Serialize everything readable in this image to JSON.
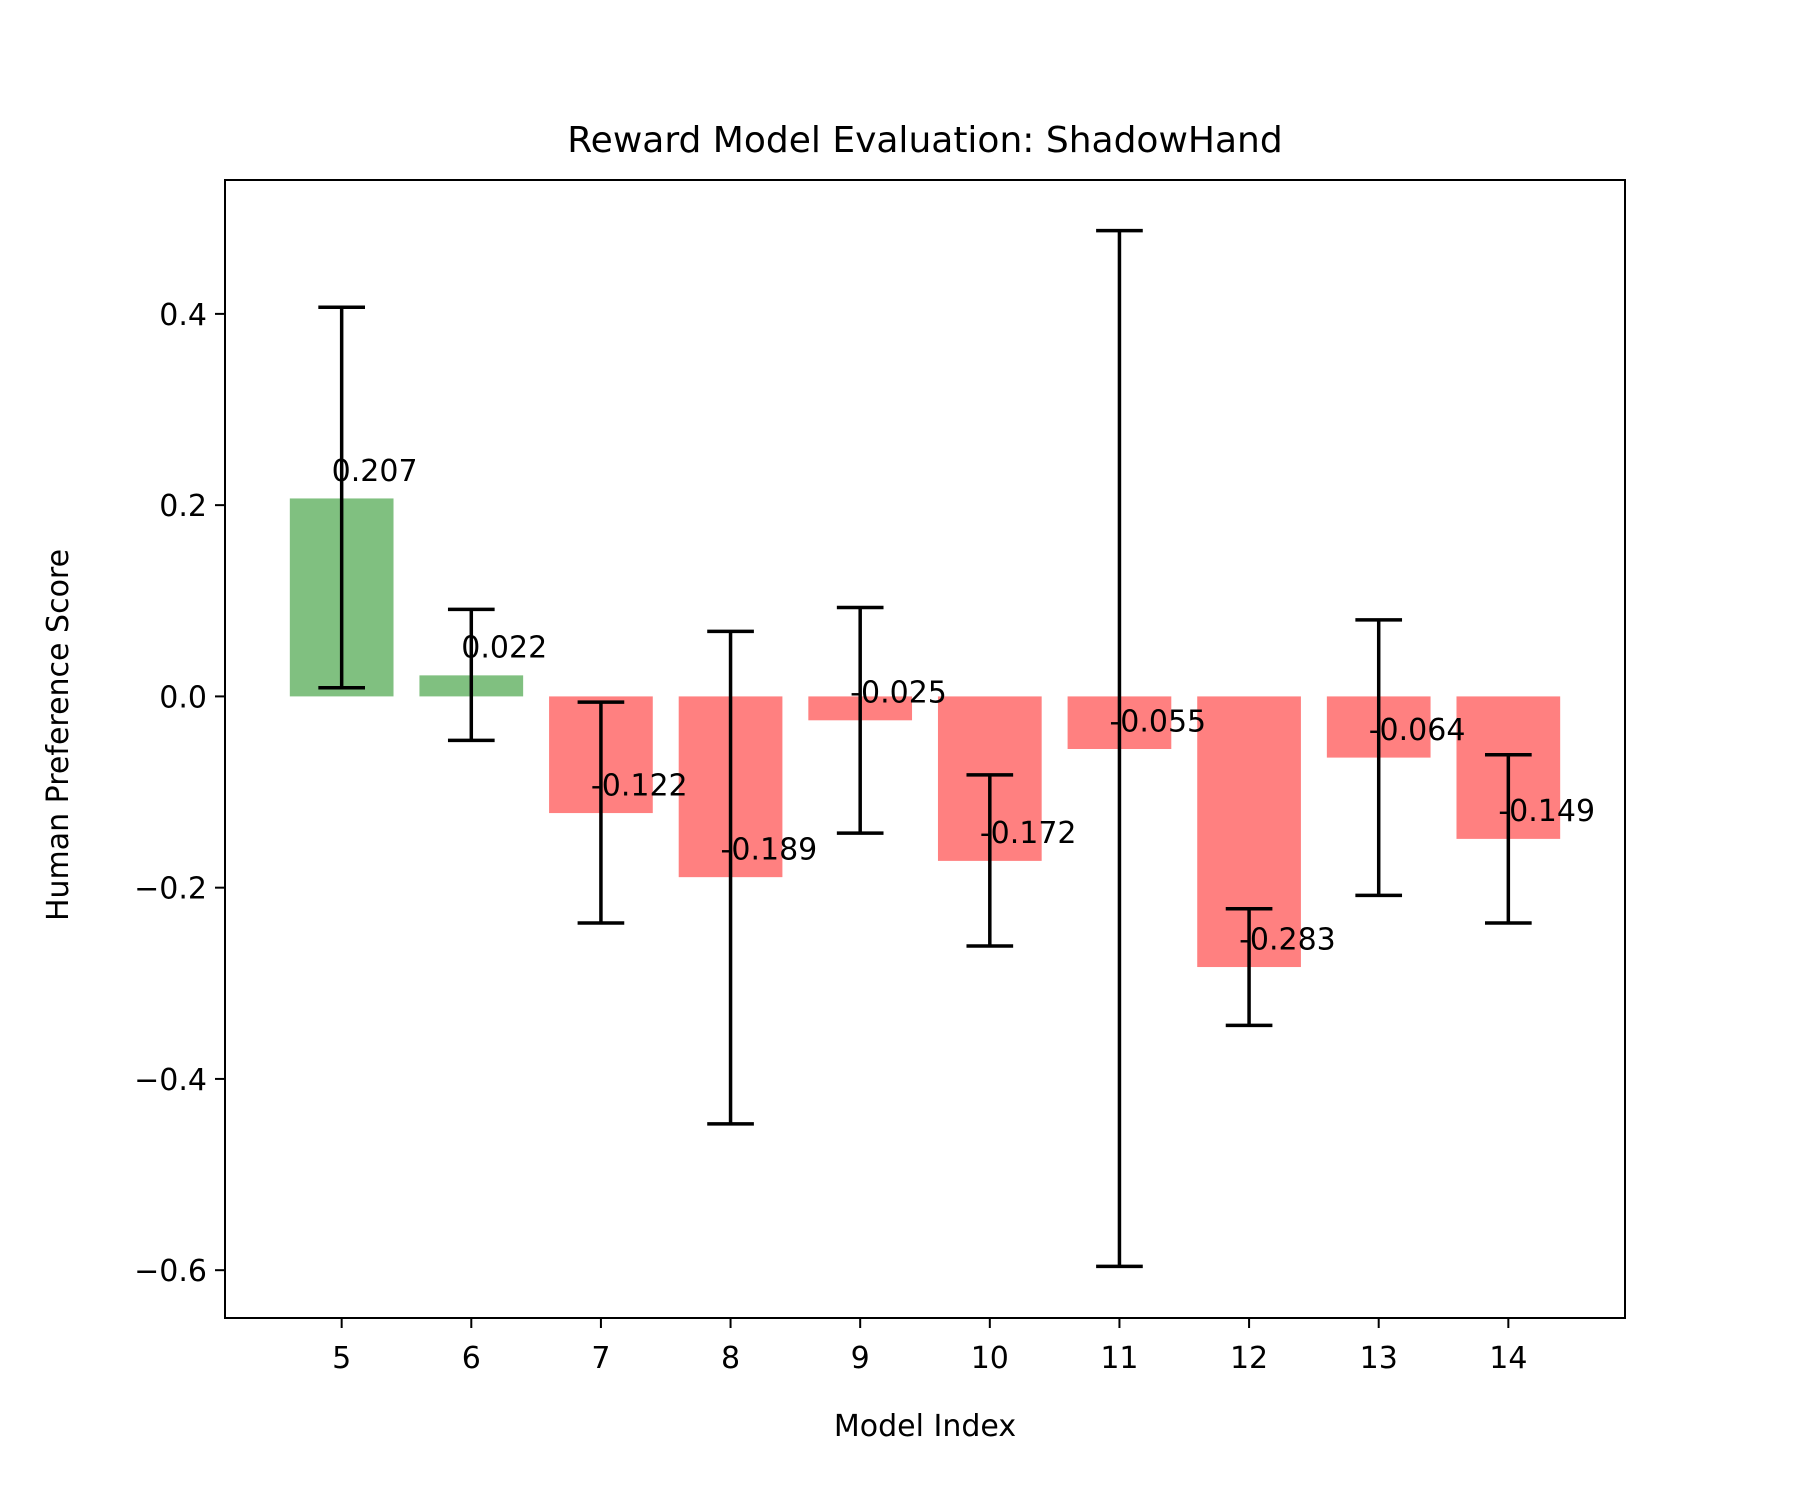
{
  "chart_data": {
    "type": "bar",
    "title": "Reward Model Evaluation: ShadowHand",
    "xlabel": "Model Index",
    "ylabel": "Human Preference Score",
    "categories": [
      "5",
      "6",
      "7",
      "8",
      "9",
      "10",
      "11",
      "12",
      "13",
      "14"
    ],
    "values": [
      0.207,
      0.022,
      -0.122,
      -0.189,
      -0.025,
      -0.172,
      -0.055,
      -0.283,
      -0.064,
      -0.149
    ],
    "value_labels": [
      "0.207",
      "0.022",
      "-0.122",
      "-0.189",
      "-0.025",
      "-0.172",
      "-0.055",
      "-0.283",
      "-0.064",
      "-0.149"
    ],
    "error_bars": [
      {
        "low": 0.009,
        "high": 0.407
      },
      {
        "low": -0.046,
        "high": 0.091
      },
      {
        "low": -0.237,
        "high": -0.006
      },
      {
        "low": -0.447,
        "high": 0.068
      },
      {
        "low": -0.143,
        "high": 0.093
      },
      {
        "low": -0.261,
        "high": -0.082
      },
      {
        "low": -0.596,
        "high": 0.487
      },
      {
        "low": -0.344,
        "high": -0.222
      },
      {
        "low": -0.208,
        "high": 0.08
      },
      {
        "low": -0.237,
        "high": -0.061
      }
    ],
    "ylim": [
      -0.65,
      0.54
    ],
    "xlim": [
      4.1,
      14.9
    ],
    "yticks": [
      -0.6,
      -0.4,
      -0.2,
      0.0,
      0.2,
      0.4
    ],
    "ytick_labels": [
      "−0.6",
      "−0.4",
      "−0.2",
      "0.0",
      "0.2",
      "0.4"
    ],
    "grid": false,
    "legend": "none",
    "colors": {
      "positive": "#80c080",
      "negative": "#ff8080",
      "error_bar": "#000000"
    }
  }
}
